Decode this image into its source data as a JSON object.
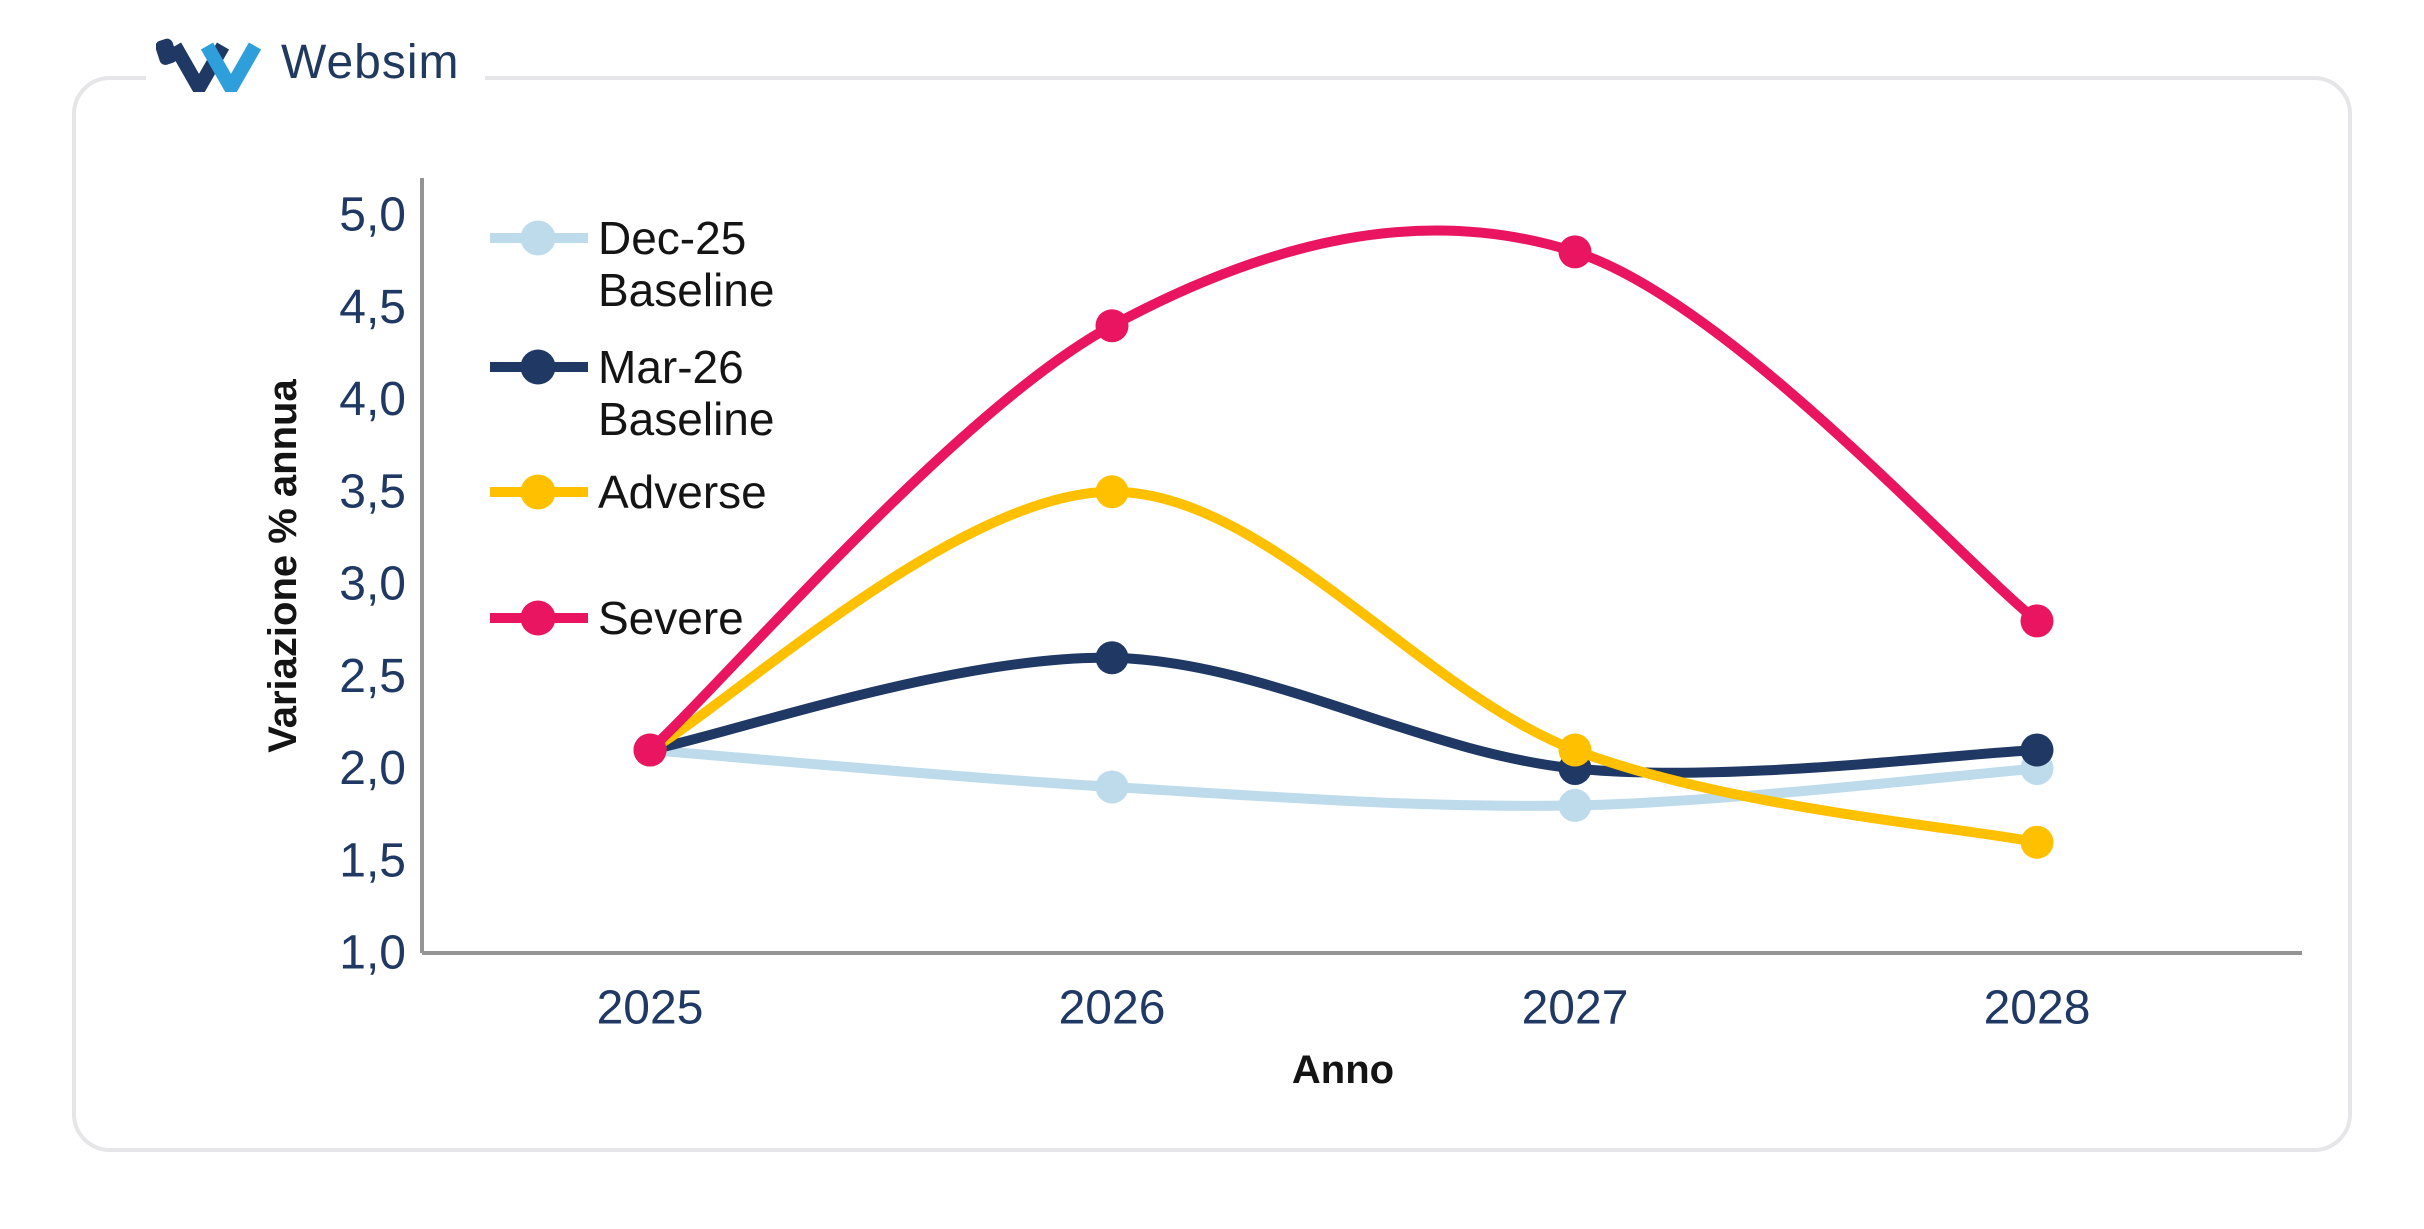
{
  "logo": {
    "text": "Websim"
  },
  "colors": {
    "accent_navy": "#1F3864",
    "axis_gray": "#949494",
    "card_border": "#E6E6E9",
    "logo_light_blue": "#2E9FDA",
    "logo_dark_blue": "#1F3864",
    "text_black": "#141414"
  },
  "chart_data": {
    "type": "line",
    "title": "",
    "xlabel": "Anno",
    "ylabel": "Variazione % annua",
    "x_categories": [
      "2025",
      "2026",
      "2027",
      "2028"
    ],
    "ylim": [
      1.0,
      5.0
    ],
    "ytick_step": 0.5,
    "decimal_separator": ",",
    "grid": false,
    "smooth_lines": true,
    "legend_position": "inside-top-left",
    "yticks": [
      {
        "value": 5.0,
        "label": "5,0"
      },
      {
        "value": 4.5,
        "label": "4,5"
      },
      {
        "value": 4.0,
        "label": "4,0"
      },
      {
        "value": 3.5,
        "label": "3,5"
      },
      {
        "value": 3.0,
        "label": "3,0"
      },
      {
        "value": 2.5,
        "label": "2,5"
      },
      {
        "value": 2.0,
        "label": "2,0"
      },
      {
        "value": 1.5,
        "label": "1,5"
      },
      {
        "value": 1.0,
        "label": "1,0"
      }
    ],
    "series": [
      {
        "name": "Dec-25 Baseline",
        "legend_lines": [
          "Dec-25",
          "Baseline"
        ],
        "color": "#BDDBEB",
        "values": [
          2.1,
          1.9,
          1.8,
          2.0
        ]
      },
      {
        "name": "Mar-26 Baseline",
        "legend_lines": [
          "Mar-26",
          "Baseline"
        ],
        "color": "#1F3864",
        "values": [
          2.1,
          2.6,
          2.0,
          2.1
        ]
      },
      {
        "name": "Adverse",
        "legend_lines": [
          "Adverse"
        ],
        "color": "#FFC000",
        "values": [
          2.1,
          3.5,
          2.1,
          1.6
        ]
      },
      {
        "name": "Severe",
        "legend_lines": [
          "Severe"
        ],
        "color": "#E91560",
        "values": [
          2.1,
          4.4,
          4.8,
          2.8
        ]
      }
    ]
  }
}
